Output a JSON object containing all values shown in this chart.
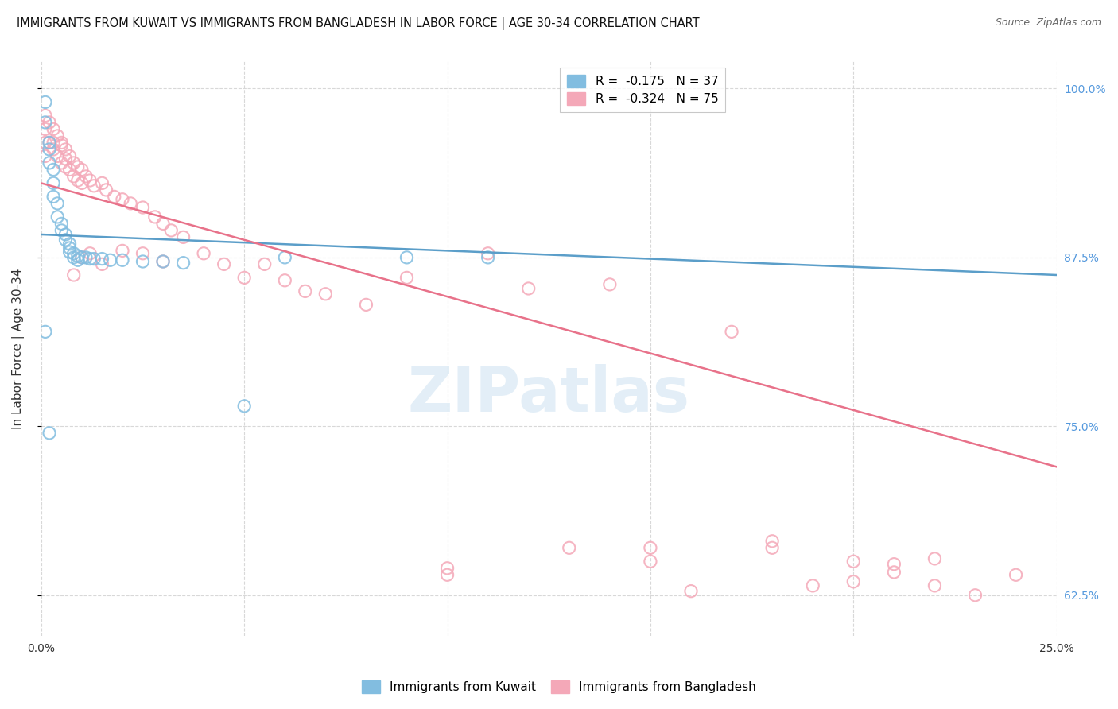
{
  "title": "IMMIGRANTS FROM KUWAIT VS IMMIGRANTS FROM BANGLADESH IN LABOR FORCE | AGE 30-34 CORRELATION CHART",
  "source": "Source: ZipAtlas.com",
  "ylabel": "In Labor Force | Age 30-34",
  "xlim": [
    0.0,
    0.25
  ],
  "ylim": [
    0.595,
    1.02
  ],
  "x_ticks": [
    0.0,
    0.05,
    0.1,
    0.15,
    0.2,
    0.25
  ],
  "x_tick_labels": [
    "0.0%",
    "",
    "",
    "",
    "",
    "25.0%"
  ],
  "y_tick_labels_right": [
    "62.5%",
    "75.0%",
    "87.5%",
    "100.0%"
  ],
  "y_ticks_right": [
    0.625,
    0.75,
    0.875,
    1.0
  ],
  "kuwait_color": "#82bde0",
  "bangladesh_color": "#f4a8b8",
  "kuwait_line_color": "#5b9ec9",
  "bangladesh_line_color": "#e8728a",
  "background_color": "#ffffff",
  "grid_color": "#d8d8d8",
  "kuwait_scatter_x": [
    0.001,
    0.001,
    0.002,
    0.002,
    0.002,
    0.003,
    0.003,
    0.003,
    0.004,
    0.004,
    0.005,
    0.005,
    0.006,
    0.006,
    0.007,
    0.007,
    0.007,
    0.008,
    0.008,
    0.009,
    0.009,
    0.01,
    0.011,
    0.012,
    0.013,
    0.015,
    0.017,
    0.02,
    0.025,
    0.03,
    0.035,
    0.05,
    0.06,
    0.09,
    0.11,
    0.001,
    0.002
  ],
  "kuwait_scatter_y": [
    0.99,
    0.975,
    0.96,
    0.955,
    0.945,
    0.94,
    0.93,
    0.92,
    0.915,
    0.905,
    0.9,
    0.895,
    0.892,
    0.888,
    0.885,
    0.882,
    0.879,
    0.878,
    0.875,
    0.876,
    0.873,
    0.875,
    0.875,
    0.874,
    0.874,
    0.874,
    0.873,
    0.873,
    0.872,
    0.872,
    0.871,
    0.765,
    0.875,
    0.875,
    0.875,
    0.82,
    0.745
  ],
  "bangladesh_scatter_x": [
    0.001,
    0.001,
    0.001,
    0.001,
    0.002,
    0.002,
    0.003,
    0.003,
    0.004,
    0.004,
    0.005,
    0.005,
    0.006,
    0.006,
    0.007,
    0.007,
    0.008,
    0.008,
    0.009,
    0.009,
    0.01,
    0.01,
    0.011,
    0.012,
    0.013,
    0.015,
    0.016,
    0.018,
    0.02,
    0.022,
    0.025,
    0.028,
    0.03,
    0.032,
    0.035,
    0.04,
    0.045,
    0.05,
    0.055,
    0.06,
    0.065,
    0.07,
    0.08,
    0.09,
    0.1,
    0.11,
    0.12,
    0.13,
    0.14,
    0.15,
    0.16,
    0.17,
    0.18,
    0.19,
    0.2,
    0.21,
    0.22,
    0.23,
    0.24,
    0.003,
    0.005,
    0.006,
    0.008,
    0.01,
    0.012,
    0.015,
    0.02,
    0.025,
    0.03,
    0.18,
    0.2,
    0.21,
    0.1,
    0.15,
    0.22
  ],
  "bangladesh_scatter_y": [
    0.98,
    0.97,
    0.96,
    0.95,
    0.975,
    0.96,
    0.97,
    0.955,
    0.965,
    0.95,
    0.96,
    0.945,
    0.955,
    0.942,
    0.95,
    0.94,
    0.945,
    0.935,
    0.942,
    0.932,
    0.94,
    0.93,
    0.935,
    0.932,
    0.928,
    0.93,
    0.925,
    0.92,
    0.918,
    0.915,
    0.912,
    0.905,
    0.9,
    0.895,
    0.89,
    0.878,
    0.87,
    0.86,
    0.87,
    0.858,
    0.85,
    0.848,
    0.84,
    0.86,
    0.645,
    0.878,
    0.852,
    0.66,
    0.855,
    0.66,
    0.628,
    0.82,
    0.66,
    0.632,
    0.65,
    0.642,
    0.652,
    0.625,
    0.64,
    0.96,
    0.958,
    0.948,
    0.862,
    0.875,
    0.878,
    0.87,
    0.88,
    0.878,
    0.872,
    0.665,
    0.635,
    0.648,
    0.64,
    0.65,
    0.632
  ],
  "kuwait_trendline_x": [
    0.0,
    0.25
  ],
  "kuwait_trendline_y": [
    0.892,
    0.862
  ],
  "bangladesh_trendline_x": [
    0.0,
    0.25
  ],
  "bangladesh_trendline_y": [
    0.93,
    0.72
  ]
}
